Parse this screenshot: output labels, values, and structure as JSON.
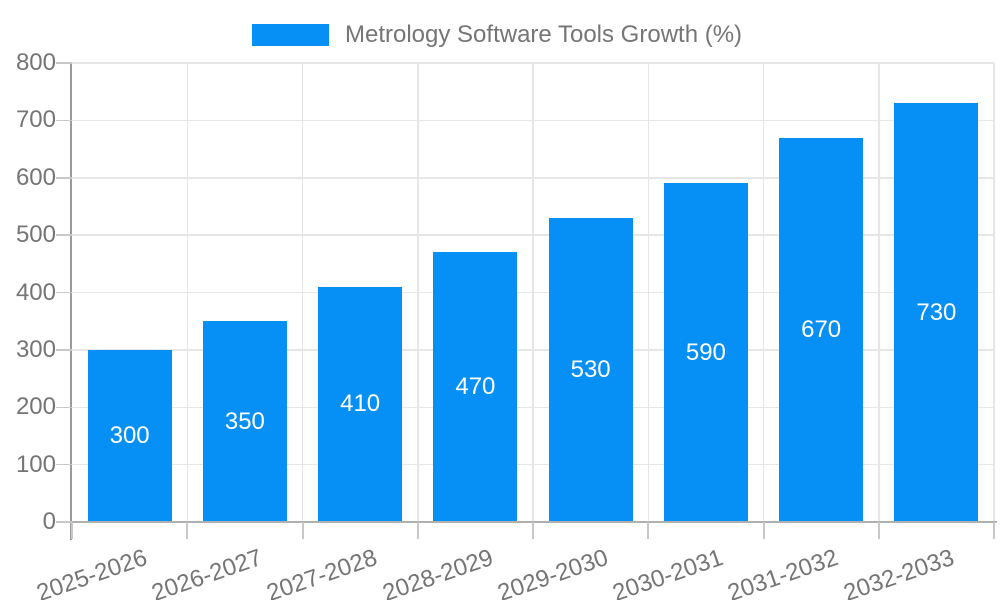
{
  "chart_data": {
    "type": "bar",
    "title": "Metrology Software Tools Growth (%)",
    "categories": [
      "2025-2026",
      "2026-2027",
      "2027-2028",
      "2028-2029",
      "2029-2030",
      "2030-2031",
      "2031-2032",
      "2032-2033"
    ],
    "series": [
      {
        "name": "Metrology Software Tools Growth (%)",
        "values": [
          300,
          350,
          410,
          470,
          530,
          590,
          670,
          730
        ]
      }
    ],
    "xlabel": "",
    "ylabel": "",
    "ylim": [
      0,
      800
    ],
    "ytick_step": 100,
    "ytick_labels": [
      "0",
      "100",
      "200",
      "300",
      "400",
      "500",
      "600",
      "700",
      "800"
    ],
    "grid": true,
    "legend_position": "top",
    "bar_value_labels": [
      "300",
      "350",
      "410",
      "470",
      "530",
      "590",
      "670",
      "730"
    ]
  },
  "colors": {
    "bar": "#0690f6",
    "grid": "#e6e6e6",
    "tick": "#c8c8c8",
    "y_axis": "#999999",
    "x_baseline": "#b0b0b0",
    "axis_label": "#757575",
    "bar_label": "#ffffff",
    "background": "#ffffff"
  }
}
